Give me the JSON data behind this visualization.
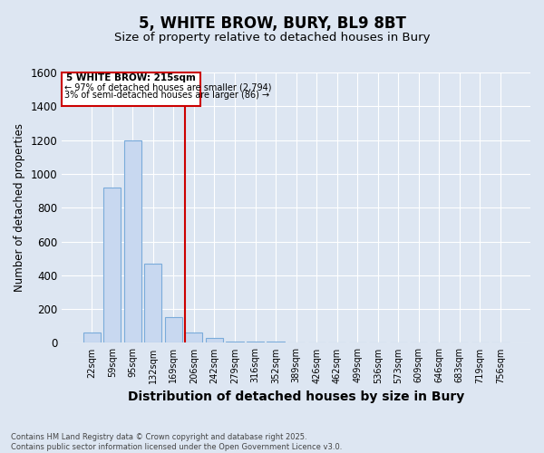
{
  "title": "5, WHITE BROW, BURY, BL9 8BT",
  "subtitle": "Size of property relative to detached houses in Bury",
  "xlabel": "Distribution of detached houses by size in Bury",
  "ylabel": "Number of detached properties",
  "categories": [
    "22sqm",
    "59sqm",
    "95sqm",
    "132sqm",
    "169sqm",
    "206sqm",
    "242sqm",
    "279sqm",
    "316sqm",
    "352sqm",
    "389sqm",
    "426sqm",
    "462sqm",
    "499sqm",
    "536sqm",
    "573sqm",
    "609sqm",
    "646sqm",
    "683sqm",
    "719sqm",
    "756sqm"
  ],
  "values": [
    60,
    920,
    1200,
    470,
    150,
    60,
    28,
    10,
    5,
    5,
    0,
    0,
    0,
    0,
    0,
    0,
    0,
    0,
    0,
    0,
    0
  ],
  "bar_color": "#c8d8f0",
  "bar_edge_color": "#7aabda",
  "bg_color": "#dde6f2",
  "plot_bg_color": "#dde6f2",
  "grid_color": "#ffffff",
  "annotation_box_color": "#cc0000",
  "red_line_x": 5,
  "annotation_title": "5 WHITE BROW: 215sqm",
  "annotation_line1": "← 97% of detached houses are smaller (2,794)",
  "annotation_line2": "3% of semi-detached houses are larger (86) →",
  "footer_line1": "Contains HM Land Registry data © Crown copyright and database right 2025.",
  "footer_line2": "Contains public sector information licensed under the Open Government Licence v3.0.",
  "ylim": [
    0,
    1600
  ],
  "yticks": [
    0,
    200,
    400,
    600,
    800,
    1000,
    1200,
    1400,
    1600
  ]
}
